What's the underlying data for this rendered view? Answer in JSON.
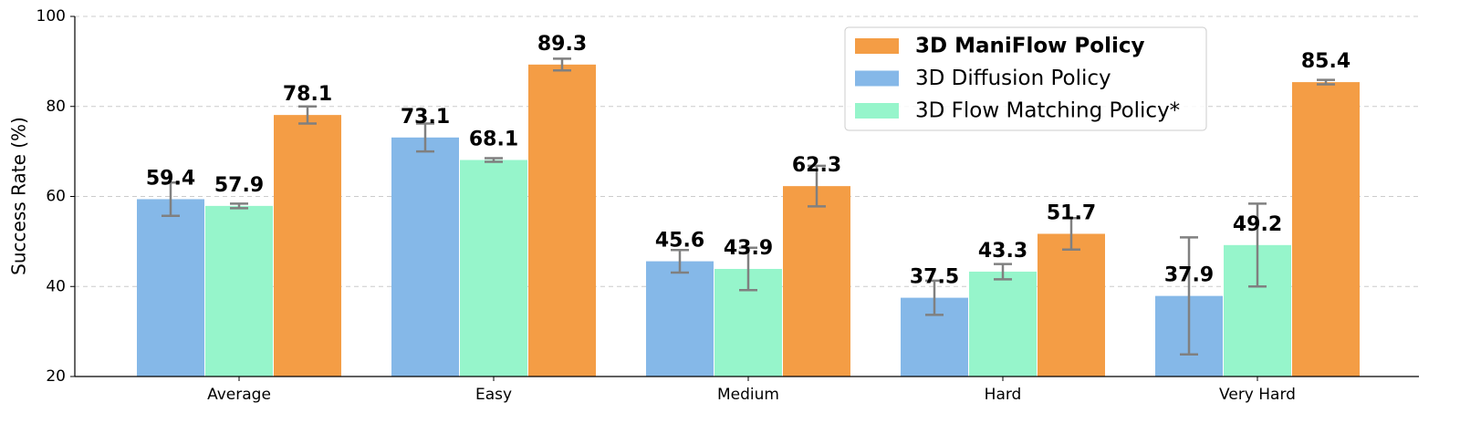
{
  "chart_data": {
    "type": "bar",
    "y_label": "Success Rate (%)",
    "categories": [
      "Average",
      "Easy",
      "Medium",
      "Hard",
      "Very Hard"
    ],
    "series": [
      {
        "name": "3D ManiFlow Policy",
        "color": "#f49d45",
        "values": [
          78.1,
          89.3,
          62.3,
          51.7,
          85.4
        ],
        "errors": [
          1.9,
          1.3,
          4.5,
          3.5,
          0.5
        ]
      },
      {
        "name": "3D Diffusion Policy",
        "color": "#85b8e8",
        "values": [
          59.4,
          73.1,
          45.6,
          37.5,
          37.9
        ],
        "errors": [
          3.7,
          3.1,
          2.5,
          3.8,
          13
        ]
      },
      {
        "name": "3D Flow Matching Policy*",
        "color": "#96f5cb",
        "values": [
          57.9,
          68.1,
          43.9,
          43.3,
          49.2
        ],
        "errors": [
          0.5,
          0.4,
          4.7,
          1.7,
          9.2
        ]
      }
    ],
    "ylim": [
      20,
      100
    ],
    "yticks": [
      20,
      40,
      60,
      80,
      100
    ],
    "grid": true,
    "legend": "upper right"
  }
}
